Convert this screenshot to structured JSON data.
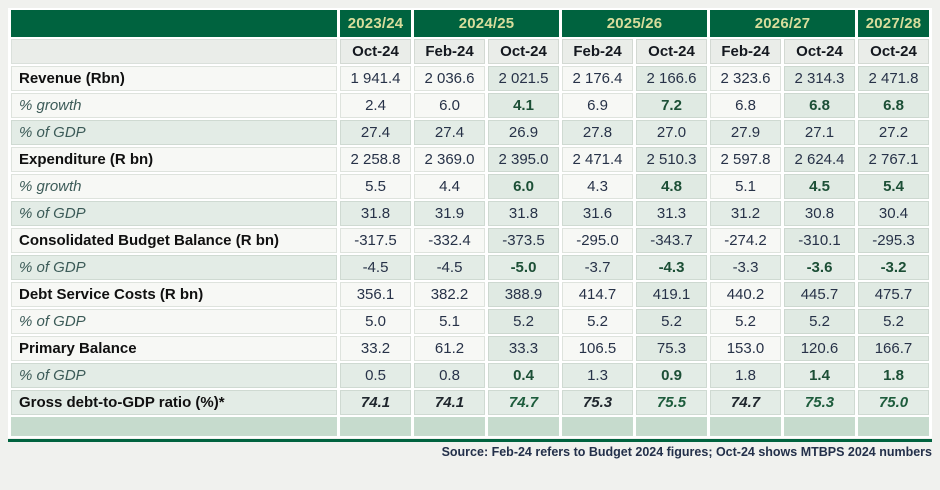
{
  "source_note": "Source: Feb-24 refers to Budget 2024 figures; Oct-24 shows MTBPS 2024 numbers",
  "colors": {
    "header_green": "#00633F",
    "year_text": "#D8DD9C",
    "row_white": "#F7F8F5",
    "row_green": "#E3ECE6",
    "highlight_tint": "#E0EAE3",
    "accent_green": "#1C4F36",
    "number_navy": "#273248",
    "empty_row_green": "#C6DBCD"
  },
  "table": {
    "year_groups": [
      {
        "label": "2023/24",
        "colspan": 1
      },
      {
        "label": "2024/25",
        "colspan": 2
      },
      {
        "label": "2025/26",
        "colspan": 2
      },
      {
        "label": "2026/27",
        "colspan": 2
      },
      {
        "label": "2027/28",
        "colspan": 1
      }
    ],
    "sub_headers": [
      "Oct-24",
      "Feb-24",
      "Oct-24",
      "Feb-24",
      "Oct-24",
      "Feb-24",
      "Oct-24",
      "Oct-24"
    ],
    "highlight_columns": [
      2,
      4,
      6,
      7
    ],
    "rows": [
      {
        "label": "Revenue (Rbn)",
        "style": "metric",
        "band": "white",
        "bold_highlight": false,
        "values": [
          "1 941.4",
          "2 036.6",
          "2 021.5",
          "2 176.4",
          "2 166.6",
          "2 323.6",
          "2 314.3",
          "2 471.8"
        ]
      },
      {
        "label": "% growth",
        "style": "sub",
        "band": "white",
        "bold_highlight": true,
        "values": [
          "2.4",
          "6.0",
          "4.1",
          "6.9",
          "7.2",
          "6.8",
          "6.8",
          "6.8"
        ]
      },
      {
        "label": "% of GDP",
        "style": "sub",
        "band": "green",
        "bold_highlight": false,
        "values": [
          "27.4",
          "27.4",
          "26.9",
          "27.8",
          "27.0",
          "27.9",
          "27.1",
          "27.2"
        ]
      },
      {
        "label": "Expenditure (R bn)",
        "style": "metric",
        "band": "white",
        "bold_highlight": false,
        "values": [
          "2 258.8",
          "2 369.0",
          "2 395.0",
          "2 471.4",
          "2 510.3",
          "2 597.8",
          "2 624.4",
          "2 767.1"
        ]
      },
      {
        "label": "% growth",
        "style": "sub",
        "band": "white",
        "bold_highlight": true,
        "values": [
          "5.5",
          "4.4",
          "6.0",
          "4.3",
          "4.8",
          "5.1",
          "4.5",
          "5.4"
        ]
      },
      {
        "label": "% of GDP",
        "style": "sub",
        "band": "green",
        "bold_highlight": false,
        "values": [
          "31.8",
          "31.9",
          "31.8",
          "31.6",
          "31.3",
          "31.2",
          "30.8",
          "30.4"
        ]
      },
      {
        "label": "Consolidated Budget Balance (R bn)",
        "style": "metric",
        "band": "white",
        "bold_highlight": false,
        "values": [
          "-317.5",
          "-332.4",
          "-373.5",
          "-295.0",
          "-343.7",
          "-274.2",
          "-310.1",
          "-295.3"
        ]
      },
      {
        "label": "% of GDP",
        "style": "sub",
        "band": "green",
        "bold_highlight": true,
        "values": [
          "-4.5",
          "-4.5",
          "-5.0",
          "-3.7",
          "-4.3",
          "-3.3",
          "-3.6",
          "-3.2"
        ]
      },
      {
        "label": "Debt Service Costs (R bn)",
        "style": "metric",
        "band": "white",
        "bold_highlight": false,
        "values": [
          "356.1",
          "382.2",
          "388.9",
          "414.7",
          "419.1",
          "440.2",
          "445.7",
          "475.7"
        ]
      },
      {
        "label": "% of GDP",
        "style": "sub",
        "band": "white",
        "bold_highlight": false,
        "values": [
          "5.0",
          "5.1",
          "5.2",
          "5.2",
          "5.2",
          "5.2",
          "5.2",
          "5.2"
        ]
      },
      {
        "label": "Primary Balance",
        "style": "metric",
        "band": "white",
        "bold_highlight": false,
        "values": [
          "33.2",
          "61.2",
          "33.3",
          "106.5",
          "75.3",
          "153.0",
          "120.6",
          "166.7"
        ]
      },
      {
        "label": "% of GDP",
        "style": "sub",
        "band": "green",
        "bold_highlight": true,
        "values": [
          "0.5",
          "0.8",
          "0.4",
          "1.3",
          "0.9",
          "1.8",
          "1.4",
          "1.8"
        ]
      },
      {
        "label": "Gross debt-to-GDP ratio (%)*",
        "style": "total",
        "band": "green",
        "bold_highlight": true,
        "values": [
          "74.1",
          "74.1",
          "74.7",
          "75.3",
          "75.5",
          "74.7",
          "75.3",
          "75.0"
        ]
      }
    ]
  },
  "chart_data": {
    "type": "table",
    "title": "",
    "columns": [
      "2023/24 Oct-24",
      "2024/25 Feb-24",
      "2024/25 Oct-24",
      "2025/26 Feb-24",
      "2025/26 Oct-24",
      "2026/27 Feb-24",
      "2026/27 Oct-24",
      "2027/28 Oct-24"
    ],
    "rows": [
      {
        "label": "Revenue (Rbn)",
        "values": [
          1941.4,
          2036.6,
          2021.5,
          2176.4,
          2166.6,
          2323.6,
          2314.3,
          2471.8
        ]
      },
      {
        "label": "Revenue % growth",
        "values": [
          2.4,
          6.0,
          4.1,
          6.9,
          7.2,
          6.8,
          6.8,
          6.8
        ]
      },
      {
        "label": "Revenue % of GDP",
        "values": [
          27.4,
          27.4,
          26.9,
          27.8,
          27.0,
          27.9,
          27.1,
          27.2
        ]
      },
      {
        "label": "Expenditure (R bn)",
        "values": [
          2258.8,
          2369.0,
          2395.0,
          2471.4,
          2510.3,
          2597.8,
          2624.4,
          2767.1
        ]
      },
      {
        "label": "Expenditure % growth",
        "values": [
          5.5,
          4.4,
          6.0,
          4.3,
          4.8,
          5.1,
          4.5,
          5.4
        ]
      },
      {
        "label": "Expenditure % of GDP",
        "values": [
          31.8,
          31.9,
          31.8,
          31.6,
          31.3,
          31.2,
          30.8,
          30.4
        ]
      },
      {
        "label": "Consolidated Budget Balance (R bn)",
        "values": [
          -317.5,
          -332.4,
          -373.5,
          -295.0,
          -343.7,
          -274.2,
          -310.1,
          -295.3
        ]
      },
      {
        "label": "Consolidated Budget Balance % of GDP",
        "values": [
          -4.5,
          -4.5,
          -5.0,
          -3.7,
          -4.3,
          -3.3,
          -3.6,
          -3.2
        ]
      },
      {
        "label": "Debt Service Costs (R bn)",
        "values": [
          356.1,
          382.2,
          388.9,
          414.7,
          419.1,
          440.2,
          445.7,
          475.7
        ]
      },
      {
        "label": "Debt Service Costs % of GDP",
        "values": [
          5.0,
          5.1,
          5.2,
          5.2,
          5.2,
          5.2,
          5.2,
          5.2
        ]
      },
      {
        "label": "Primary Balance",
        "values": [
          33.2,
          61.2,
          33.3,
          106.5,
          75.3,
          153.0,
          120.6,
          166.7
        ]
      },
      {
        "label": "Primary Balance % of GDP",
        "values": [
          0.5,
          0.8,
          0.4,
          1.3,
          0.9,
          1.8,
          1.4,
          1.8
        ]
      },
      {
        "label": "Gross debt-to-GDP ratio (%)*",
        "values": [
          74.1,
          74.1,
          74.7,
          75.3,
          75.5,
          74.7,
          75.3,
          75.0
        ]
      }
    ],
    "footnote": "Source: Feb-24 refers to Budget 2024 figures; Oct-24 shows MTBPS 2024 numbers"
  }
}
